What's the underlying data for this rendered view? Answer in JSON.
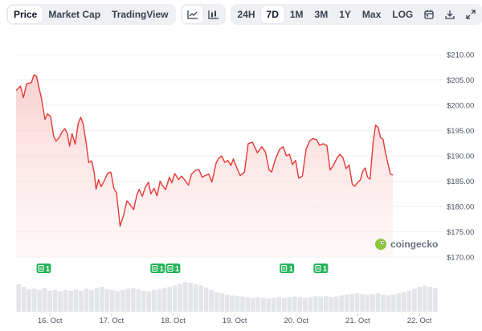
{
  "toolbar": {
    "view_tabs": [
      "Price",
      "Market Cap",
      "TradingView"
    ],
    "active_view": "Price",
    "chart_type_icons": [
      "line-chart-icon",
      "candlestick-chart-icon"
    ],
    "range_tabs": [
      "24H",
      "7D",
      "1M",
      "3M",
      "1Y",
      "Max",
      "LOG"
    ],
    "active_range": "7D",
    "action_icons": [
      "calendar-icon",
      "download-icon",
      "expand-icon"
    ]
  },
  "watermark": "coingecko",
  "colors": {
    "line": "#e53935",
    "fill": "#fdeaea",
    "volume": "#e3e5e8",
    "badge": "#27b35a",
    "grid": "#eef0f2"
  },
  "events": [
    {
      "x": 15.9,
      "label": "1"
    },
    {
      "x": 17.75,
      "label": "1"
    },
    {
      "x": 18.0,
      "label": "1"
    },
    {
      "x": 19.85,
      "label": "1"
    },
    {
      "x": 20.4,
      "label": "1"
    }
  ],
  "chart_data": {
    "type": "area",
    "ylim": [
      170,
      210
    ],
    "yticks": [
      210,
      205,
      200,
      195,
      190,
      185,
      180,
      175,
      170
    ],
    "ytick_labels": [
      "$210.00",
      "$205.00",
      "$200.00",
      "$195.00",
      "$190.00",
      "$185.00",
      "$180.00",
      "$175.00",
      "$170.00"
    ],
    "xlim": [
      15.45,
      22.3
    ],
    "xticks": [
      16,
      17,
      18,
      19,
      20,
      21,
      22
    ],
    "xtick_labels": [
      "16. Oct",
      "17. Oct",
      "18. Oct",
      "19. Oct",
      "20. Oct",
      "21. Oct",
      "22. Oct"
    ],
    "series": [
      {
        "values": [
          [
            15.45,
            202.9
          ],
          [
            15.52,
            203.8
          ],
          [
            15.57,
            201.5
          ],
          [
            15.62,
            204.2
          ],
          [
            15.7,
            204.5
          ],
          [
            15.74,
            206.0
          ],
          [
            15.78,
            205.8
          ],
          [
            15.82,
            203.6
          ],
          [
            15.86,
            201.5
          ],
          [
            15.92,
            197.2
          ],
          [
            15.96,
            198.3
          ],
          [
            16.01,
            197.8
          ],
          [
            16.06,
            193.9
          ],
          [
            16.1,
            192.9
          ],
          [
            16.15,
            193.6
          ],
          [
            16.2,
            194.8
          ],
          [
            16.24,
            195.4
          ],
          [
            16.28,
            194.5
          ],
          [
            16.32,
            191.9
          ],
          [
            16.36,
            194.4
          ],
          [
            16.41,
            192.3
          ],
          [
            16.46,
            196.5
          ],
          [
            16.5,
            197.6
          ],
          [
            16.54,
            196.3
          ],
          [
            16.59,
            192.4
          ],
          [
            16.63,
            188.7
          ],
          [
            16.68,
            189.0
          ],
          [
            16.72,
            186.6
          ],
          [
            16.75,
            183.4
          ],
          [
            16.79,
            185.3
          ],
          [
            16.83,
            183.9
          ],
          [
            16.88,
            185.0
          ],
          [
            16.94,
            186.6
          ],
          [
            16.99,
            186.8
          ],
          [
            17.04,
            183.5
          ],
          [
            17.08,
            182.8
          ],
          [
            17.14,
            176.1
          ],
          [
            17.2,
            178.4
          ],
          [
            17.25,
            181.1
          ],
          [
            17.3,
            180.4
          ],
          [
            17.36,
            179.4
          ],
          [
            17.41,
            182.2
          ],
          [
            17.45,
            183.4
          ],
          [
            17.5,
            182.0
          ],
          [
            17.55,
            183.8
          ],
          [
            17.6,
            184.8
          ],
          [
            17.64,
            182.5
          ],
          [
            17.69,
            183.6
          ],
          [
            17.74,
            182.1
          ],
          [
            17.79,
            185.0
          ],
          [
            17.83,
            184.1
          ],
          [
            17.88,
            183.3
          ],
          [
            17.94,
            185.8
          ],
          [
            17.98,
            184.7
          ],
          [
            18.03,
            186.5
          ],
          [
            18.09,
            185.3
          ],
          [
            18.14,
            186.0
          ],
          [
            18.19,
            185.2
          ],
          [
            18.25,
            184.2
          ],
          [
            18.3,
            186.4
          ],
          [
            18.36,
            187.1
          ],
          [
            18.42,
            187.3
          ],
          [
            18.47,
            185.8
          ],
          [
            18.52,
            186.1
          ],
          [
            18.58,
            186.4
          ],
          [
            18.63,
            184.8
          ],
          [
            18.7,
            188.6
          ],
          [
            18.74,
            189.5
          ],
          [
            18.79,
            190.0
          ],
          [
            18.84,
            188.7
          ],
          [
            18.89,
            189.1
          ],
          [
            18.94,
            188.1
          ],
          [
            18.98,
            189.4
          ],
          [
            19.04,
            187.5
          ],
          [
            19.09,
            186.1
          ],
          [
            19.16,
            186.8
          ],
          [
            19.22,
            192.4
          ],
          [
            19.29,
            192.7
          ],
          [
            19.37,
            190.6
          ],
          [
            19.44,
            191.8
          ],
          [
            19.5,
            190.8
          ],
          [
            19.56,
            187.2
          ],
          [
            19.6,
            186.8
          ],
          [
            19.66,
            189.3
          ],
          [
            19.73,
            191.3
          ],
          [
            19.79,
            191.8
          ],
          [
            19.84,
            190.0
          ],
          [
            19.89,
            190.3
          ],
          [
            19.94,
            188.3
          ],
          [
            19.99,
            189.1
          ],
          [
            20.04,
            185.6
          ],
          [
            20.1,
            186.0
          ],
          [
            20.16,
            191.3
          ],
          [
            20.22,
            193.0
          ],
          [
            20.27,
            193.4
          ],
          [
            20.33,
            193.2
          ],
          [
            20.38,
            192.1
          ],
          [
            20.44,
            192.4
          ],
          [
            20.5,
            192.0
          ],
          [
            20.55,
            187.2
          ],
          [
            20.6,
            188.0
          ],
          [
            20.66,
            189.5
          ],
          [
            20.71,
            190.3
          ],
          [
            20.76,
            189.6
          ],
          [
            20.81,
            187.5
          ],
          [
            20.86,
            188.2
          ],
          [
            20.91,
            184.4
          ],
          [
            20.95,
            184.0
          ],
          [
            21.0,
            184.8
          ],
          [
            21.04,
            185.2
          ],
          [
            21.08,
            186.9
          ],
          [
            21.12,
            187.6
          ],
          [
            21.16,
            185.8
          ],
          [
            21.2,
            185.4
          ],
          [
            21.25,
            192.8
          ],
          [
            21.29,
            196.1
          ],
          [
            21.33,
            195.6
          ],
          [
            21.37,
            193.6
          ],
          [
            21.41,
            193.3
          ],
          [
            21.45,
            190.6
          ],
          [
            21.49,
            188.5
          ],
          [
            21.53,
            186.4
          ],
          [
            21.57,
            186.2
          ]
        ]
      }
    ],
    "volume": [
      0.42,
      0.38,
      0.34,
      0.35,
      0.33,
      0.36,
      0.32,
      0.33,
      0.31,
      0.33,
      0.32,
      0.34,
      0.32,
      0.35,
      0.33,
      0.36,
      0.38,
      0.34,
      0.33,
      0.31,
      0.33,
      0.35,
      0.36,
      0.34,
      0.32,
      0.31,
      0.33,
      0.34,
      0.36,
      0.38,
      0.4,
      0.43,
      0.45,
      0.44,
      0.42,
      0.4,
      0.37,
      0.33,
      0.3,
      0.28,
      0.26,
      0.25,
      0.24,
      0.23,
      0.22,
      0.21,
      0.22,
      0.21,
      0.2,
      0.21,
      0.22,
      0.21,
      0.22,
      0.23,
      0.22,
      0.21,
      0.22,
      0.24,
      0.23,
      0.24,
      0.22,
      0.23,
      0.25,
      0.26,
      0.27,
      0.28,
      0.27,
      0.26,
      0.27,
      0.28,
      0.26,
      0.25,
      0.26,
      0.28,
      0.3,
      0.32,
      0.35,
      0.38,
      0.4,
      0.38,
      0.36
    ],
    "grid": true
  }
}
